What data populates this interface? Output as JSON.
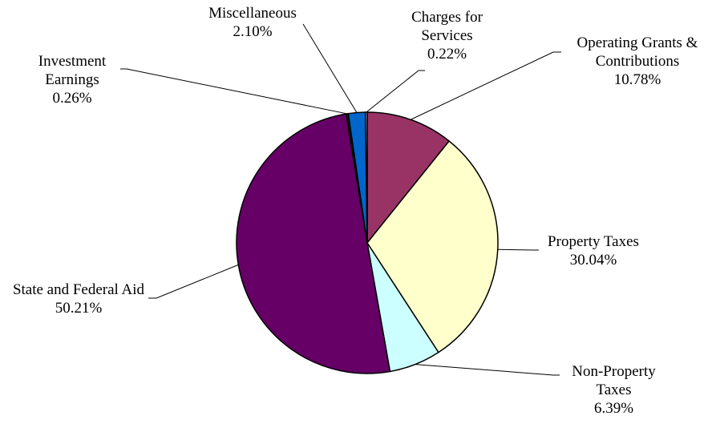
{
  "chart_data": {
    "type": "pie",
    "categories": [
      "Operating Grants & Contributions",
      "Property Taxes",
      "Non-Property Taxes",
      "State and Federal Aid",
      "Investment Earnings",
      "Miscellaneous",
      "Charges for Services"
    ],
    "values": [
      10.78,
      30.04,
      6.39,
      50.21,
      0.26,
      2.1,
      0.22
    ],
    "value_labels": [
      "10.78%",
      "30.04%",
      "6.39%",
      "50.21%",
      "0.26%",
      "2.10%",
      "0.22%"
    ],
    "colors": [
      "#993366",
      "#ffffcc",
      "#ccffff",
      "#660066",
      "#1a1a1a",
      "#0066cc",
      "#ccccff"
    ]
  }
}
